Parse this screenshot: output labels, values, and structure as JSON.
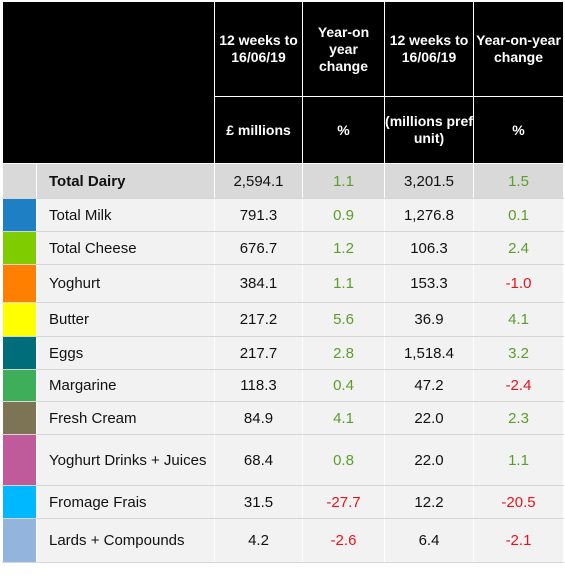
{
  "header": {
    "col1_title": "12 weeks to 16/06/19",
    "col2_title": "Year-on year change",
    "col3_title": "12 weeks to 16/06/19",
    "col4_title": "Year-on-year change",
    "col1_unit": "£ millions",
    "col2_unit": "%",
    "col3_unit": "(millions pref unit)",
    "col4_unit": "%"
  },
  "rows": [
    {
      "label": "Total Dairy",
      "color": "#d9d9d9",
      "v1": "2,594.1",
      "v2": "1.1",
      "v3": "3,201.5",
      "v4": "1.5"
    },
    {
      "label": "Total Milk",
      "color": "#1f7fc4",
      "v1": "791.3",
      "v2": "0.9",
      "v3": "1,276.8",
      "v4": "0.1"
    },
    {
      "label": "Total Cheese",
      "color": "#7fcc00",
      "v1": "676.7",
      "v2": "1.2",
      "v3": "106.3",
      "v4": "2.4"
    },
    {
      "label": "Yoghurt",
      "color": "#ff7f00",
      "v1": "384.1",
      "v2": "1.1",
      "v3": "153.3",
      "v4": "-1.0"
    },
    {
      "label": "Butter",
      "color": "#ffff00",
      "v1": "217.2",
      "v2": "5.6",
      "v3": "36.9",
      "v4": "4.1"
    },
    {
      "label": "Eggs",
      "color": "#006e7a",
      "v1": "217.7",
      "v2": "2.8",
      "v3": "1,518.4",
      "v4": "3.2"
    },
    {
      "label": "Margarine",
      "color": "#3fae5a",
      "v1": "118.3",
      "v2": "0.4",
      "v3": "47.2",
      "v4": "-2.4"
    },
    {
      "label": "Fresh Cream",
      "color": "#7d7355",
      "v1": "84.9",
      "v2": "4.1",
      "v3": "22.0",
      "v4": "2.3"
    },
    {
      "label": "Yoghurt Drinks + Juices",
      "color": "#bf5b9a",
      "v1": "68.4",
      "v2": "0.8",
      "v3": "22.0",
      "v4": "1.1"
    },
    {
      "label": "Fromage Frais",
      "color": "#00b8ff",
      "v1": "31.5",
      "v2": "-27.7",
      "v3": "12.2",
      "v4": "-20.5"
    },
    {
      "label": "Lards + Compounds",
      "color": "#93b4dd",
      "v1": "4.2",
      "v2": "-2.6",
      "v3": "6.4",
      "v4": "-2.1"
    }
  ]
}
